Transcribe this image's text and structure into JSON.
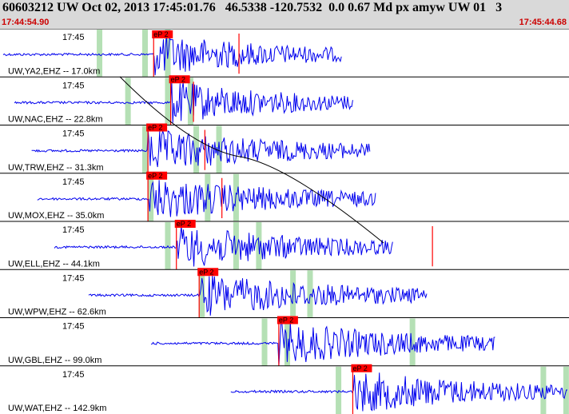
{
  "header": {
    "event_line": "60603212 UW Oct 02, 2013 17:45:01.76   46.5338 -120.7532  0.0 0.67 Md px amyw UW 01   3",
    "start_time": "17:44:54.90",
    "end_time": "17:45:44.68"
  },
  "colors": {
    "header_bg": "#d9d9d9",
    "timestamp": "#cc0000",
    "waveform": "#0000ee",
    "pick_marker": "#ff0000",
    "coda_window": "#b5e0b5",
    "separator": "#000000"
  },
  "pick_label": "eP 2",
  "tick_time": "17:45",
  "traces": [
    {
      "label": "UW,YA2,EHZ -- 17.0km",
      "trace_start": 0.0,
      "arrival": 0.27,
      "trace_end": 0.6,
      "pick_line": 0.42,
      "coda": [
        0.17,
        0.25,
        0.29
      ]
    },
    {
      "label": "UW,NAC,EHZ -- 22.8km",
      "trace_start": 0.02,
      "arrival": 0.3,
      "trace_end": 0.62,
      "pick_line": 0.34,
      "coda": [
        0.22,
        0.29,
        0.33
      ]
    },
    {
      "label": "UW,TRW,EHZ -- 31.3km",
      "trace_start": 0.05,
      "arrival": 0.26,
      "trace_end": 0.65,
      "pick_line": 0.36,
      "coda": [
        0.25,
        0.34,
        0.38
      ]
    },
    {
      "label": "UW,MOX,EHZ -- 35.0km",
      "trace_start": 0.06,
      "arrival": 0.26,
      "trace_end": 0.66,
      "pick_line": 0.39,
      "coda": [
        0.26,
        0.36,
        0.41
      ]
    },
    {
      "label": "UW,ELL,EHZ -- 44.1km",
      "trace_start": 0.09,
      "arrival": 0.31,
      "trace_end": 0.69,
      "pick_line": 0.76,
      "coda": [
        0.29,
        0.41,
        0.45
      ]
    },
    {
      "label": "UW,WPW,EHZ -- 62.6km",
      "trace_start": 0.15,
      "arrival": 0.35,
      "trace_end": 0.75,
      "pick_line": 0.0,
      "coda": [
        0.35,
        0.51,
        0.54
      ]
    },
    {
      "label": "UW,GBL,EHZ -- 99.0km",
      "trace_start": 0.26,
      "arrival": 0.49,
      "trace_end": 0.87,
      "pick_line": 0.0,
      "coda": [
        0.46,
        0.5,
        0.72
      ]
    },
    {
      "label": "UW,WAT,EHZ -- 142.9km",
      "trace_start": 0.4,
      "arrival": 0.62,
      "trace_end": 1.0,
      "pick_line": 0.0,
      "coda": [
        0.59,
        0.95,
        0.99
      ]
    }
  ]
}
